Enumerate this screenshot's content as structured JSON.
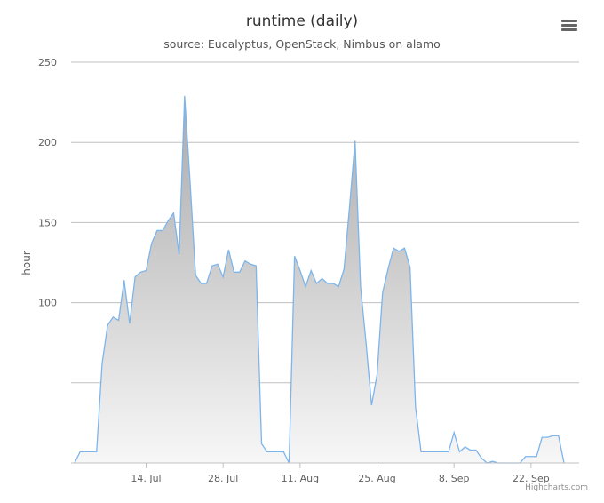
{
  "chart_data": {
    "type": "area",
    "title": "runtime (daily)",
    "subtitle": "source: Eucalyptus, OpenStack, Nimbus on alamo",
    "ylabel": "hour",
    "xlabel": "",
    "ylim": [
      0,
      250
    ],
    "y_ticks": [
      {
        "value": 250,
        "label": "250"
      },
      {
        "value": 200,
        "label": "200"
      },
      {
        "value": 150,
        "label": "150"
      },
      {
        "value": 100,
        "label": "100"
      },
      {
        "value": 50,
        "label": ""
      }
    ],
    "x_ticks": [
      {
        "index": 13,
        "label": "14. Jul"
      },
      {
        "index": 27,
        "label": "28. Jul"
      },
      {
        "index": 41,
        "label": "11. Aug"
      },
      {
        "index": 55,
        "label": "25. Aug"
      },
      {
        "index": 69,
        "label": "8. Sep"
      },
      {
        "index": 83,
        "label": "22. Sep"
      }
    ],
    "x_start": "1. Jul",
    "x_end": "30. Sep",
    "grid": true,
    "legend": "none",
    "series": [
      {
        "values": [
          0,
          7,
          7,
          7,
          7,
          62,
          86,
          91,
          89,
          114,
          87,
          116,
          119,
          120,
          137,
          145,
          145,
          151,
          156,
          130,
          229,
          175,
          117,
          112,
          112,
          123,
          124,
          116,
          133,
          119,
          119,
          126,
          124,
          123,
          12,
          7,
          7,
          7,
          7,
          0,
          129,
          120,
          110,
          120,
          112,
          115,
          112,
          112,
          110,
          121,
          160,
          201,
          110,
          75,
          36,
          55,
          106,
          121,
          134,
          132,
          134,
          122,
          35,
          7,
          7,
          7,
          7,
          7,
          7,
          19,
          7,
          10,
          8,
          8,
          3,
          0,
          1,
          0,
          0,
          0,
          0,
          0,
          4,
          4,
          4,
          16,
          16,
          17,
          17,
          0
        ]
      }
    ],
    "colors": {
      "line": "#7cb5ec",
      "area_top": "#a9a9a9",
      "area_bottom": "#f7f7f7",
      "grid": "#c0c0c0",
      "axis_label": "#606060"
    }
  },
  "credits": "Highcharts.com",
  "menu": {
    "icon": "hamburger-menu-icon"
  }
}
